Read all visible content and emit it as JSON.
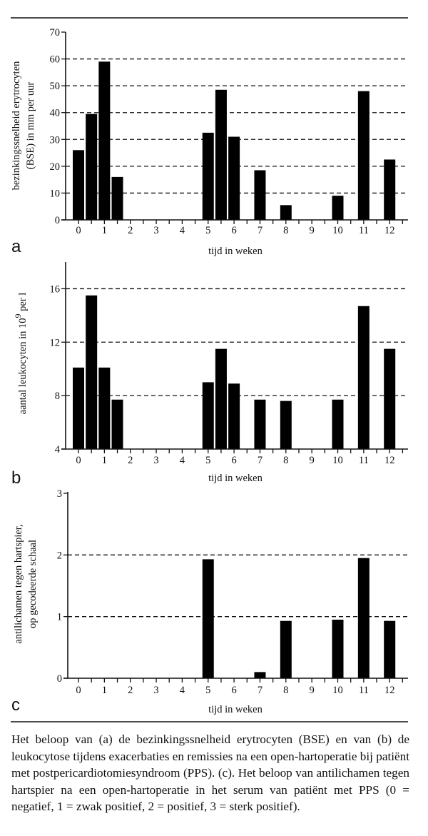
{
  "chart_data": [
    {
      "type": "bar",
      "panel_label": "a",
      "title": "",
      "ylabel_lines": [
        "bezinkingssnelheid erytrocyten",
        "(BSE) in mm per uur"
      ],
      "xlabel": "tijd in weken",
      "ylim": [
        0,
        70
      ],
      "yticks": [
        0,
        10,
        20,
        30,
        40,
        50,
        60,
        70
      ],
      "ygrid": [
        10,
        20,
        30,
        40,
        50,
        60
      ],
      "xlim": [
        -0.5,
        12.7
      ],
      "xticks": [
        0,
        1,
        2,
        3,
        4,
        5,
        6,
        7,
        8,
        9,
        10,
        11,
        12
      ],
      "x": [
        0,
        0.5,
        1,
        1.5,
        5,
        5.5,
        6,
        7,
        8,
        10,
        11,
        12
      ],
      "values": [
        26,
        39.5,
        59,
        16,
        32.5,
        48.5,
        31,
        18.5,
        5.5,
        9,
        48,
        22.5
      ]
    },
    {
      "type": "bar",
      "panel_label": "b",
      "title": "",
      "ylabel_lines": [
        "aantal leukocyten in 10",
        "9",
        " per l"
      ],
      "xlabel": "tijd in weken",
      "ylim": [
        4,
        18
      ],
      "yticks": [
        4,
        8,
        12,
        16
      ],
      "ygrid": [
        8,
        12,
        16
      ],
      "xlim": [
        -0.5,
        12.7
      ],
      "xticks": [
        0,
        1,
        2,
        3,
        4,
        5,
        6,
        7,
        8,
        9,
        10,
        11,
        12
      ],
      "x": [
        0,
        0.5,
        1,
        1.5,
        5,
        5.5,
        6,
        7,
        8,
        10,
        11,
        12
      ],
      "values": [
        10.1,
        15.5,
        10.1,
        7.7,
        9.0,
        11.5,
        8.9,
        7.7,
        7.6,
        7.7,
        14.7,
        11.5
      ]
    },
    {
      "type": "bar",
      "panel_label": "c",
      "title": "",
      "ylabel_lines": [
        "antilichamen tegen hartspier,",
        "op gecodeerde schaal"
      ],
      "xlabel": "tijd in weken",
      "ylim": [
        0,
        3
      ],
      "yticks": [
        0,
        1,
        2,
        3
      ],
      "ygrid": [
        1,
        2
      ],
      "xlim": [
        -0.5,
        12.7
      ],
      "xticks": [
        0,
        1,
        2,
        3,
        4,
        5,
        6,
        7,
        8,
        9,
        10,
        11,
        12
      ],
      "x": [
        5,
        7,
        8,
        10,
        11,
        12
      ],
      "values": [
        1.93,
        0.1,
        0.93,
        0.95,
        1.95,
        0.93
      ]
    }
  ],
  "caption": "Het beloop van (a) de bezinkingssnelheid erytrocyten (BSE) en van (b) de leukocytose tijdens exacerbaties en remissies na een open-hartoperatie bij patiënt met postpericardiotomiesyndroom (PPS). (c). Het beloop van antilichamen tegen hartspier na een open-hartoperatie in het serum van patiënt met PPS (0 = negatief, 1 = zwak positief, 2 = positief, 3 = sterk positief).",
  "colors": {
    "bar": "#000000",
    "axis": "#111111",
    "grid": "#111111"
  }
}
